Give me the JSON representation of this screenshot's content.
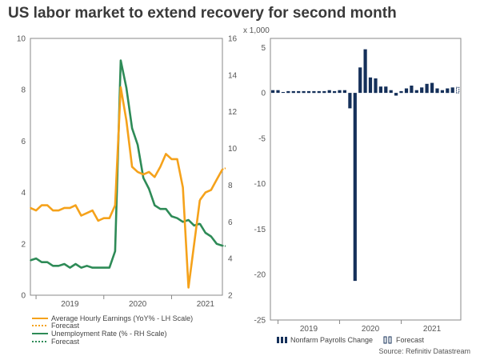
{
  "title": "US labor market to extend recovery for second month",
  "source": "Source: Refinitiv Datastream",
  "colors": {
    "earnings": "#f5a21b",
    "unemployment": "#2e8b57",
    "payrolls": "#15305a",
    "axis": "#888888"
  },
  "chart_data": [
    {
      "type": "line",
      "name": "left",
      "x_tick_labels": [
        "2019",
        "2020",
        "2021"
      ],
      "x_range": [
        "2018-12",
        "2021-07"
      ],
      "left_axis": {
        "label": "",
        "ylim": [
          0,
          10
        ],
        "ticks": [
          0,
          2,
          4,
          6,
          8,
          10
        ]
      },
      "right_axis": {
        "label": "",
        "ylim": [
          2,
          16
        ],
        "ticks": [
          2,
          4,
          6,
          8,
          10,
          12,
          14,
          16
        ]
      },
      "series": [
        {
          "name": "Average Hourly Earnings (YoY% - LH Scale)",
          "axis": "left",
          "x": [
            "2018-12",
            "2019-01",
            "2019-02",
            "2019-03",
            "2019-04",
            "2019-05",
            "2019-06",
            "2019-07",
            "2019-08",
            "2019-09",
            "2019-10",
            "2019-11",
            "2019-12",
            "2020-01",
            "2020-02",
            "2020-03",
            "2020-04",
            "2020-05",
            "2020-06",
            "2020-07",
            "2020-08",
            "2020-09",
            "2020-10",
            "2020-11",
            "2020-12",
            "2021-01",
            "2021-02",
            "2021-03",
            "2021-04",
            "2021-05",
            "2021-06"
          ],
          "values": [
            3.4,
            3.3,
            3.5,
            3.5,
            3.3,
            3.3,
            3.4,
            3.4,
            3.5,
            3.1,
            3.2,
            3.3,
            2.9,
            3.0,
            3.0,
            3.5,
            8.1,
            6.8,
            5.0,
            4.8,
            4.7,
            4.8,
            4.6,
            5.0,
            5.5,
            5.3,
            5.3,
            4.2,
            0.3,
            2.0,
            3.7
          ],
          "forecast": {
            "x": [
              "2021-07",
              "2021-08",
              "2021-09",
              "2021-10"
            ],
            "values": [
              4.0,
              4.1,
              4.5,
              4.9
            ]
          }
        },
        {
          "name": "Unemployment Rate (% - RH Scale)",
          "axis": "right",
          "x": [
            "2018-12",
            "2019-01",
            "2019-02",
            "2019-03",
            "2019-04",
            "2019-05",
            "2019-06",
            "2019-07",
            "2019-08",
            "2019-09",
            "2019-10",
            "2019-11",
            "2019-12",
            "2020-01",
            "2020-02",
            "2020-03",
            "2020-04",
            "2020-05",
            "2020-06",
            "2020-07",
            "2020-08",
            "2020-09",
            "2020-10",
            "2020-11",
            "2020-12",
            "2021-01",
            "2021-02",
            "2021-03",
            "2021-04",
            "2021-05",
            "2021-06"
          ],
          "values": [
            3.9,
            4.0,
            3.8,
            3.8,
            3.6,
            3.6,
            3.7,
            3.5,
            3.7,
            3.5,
            3.6,
            3.5,
            3.5,
            3.5,
            3.5,
            4.4,
            14.8,
            13.3,
            11.1,
            10.2,
            8.4,
            7.8,
            6.9,
            6.7,
            6.7,
            6.3,
            6.2,
            6.0,
            6.1,
            5.8,
            5.9
          ],
          "forecast": {
            "x": [
              "2021-07",
              "2021-08",
              "2021-09",
              "2021-10"
            ],
            "values": [
              5.4,
              5.2,
              4.8,
              4.7
            ]
          }
        }
      ],
      "legend": [
        {
          "label": "Average Hourly Earnings (YoY% - LH Scale)",
          "style": "solid",
          "color_key": "earnings"
        },
        {
          "label": "Forecast",
          "style": "dotted",
          "color_key": "earnings"
        },
        {
          "label": "Unemployment Rate (% - RH Scale)",
          "style": "solid",
          "color_key": "unemployment"
        },
        {
          "label": "Forecast",
          "style": "dotted",
          "color_key": "unemployment"
        }
      ]
    },
    {
      "type": "bar",
      "name": "right",
      "units_label": "x 1,000",
      "x_tick_labels": [
        "2019",
        "2020",
        "2021"
      ],
      "ylim": [
        -25,
        6
      ],
      "ticks": [
        5,
        0,
        -5,
        -10,
        -15,
        -20,
        -25
      ],
      "series": [
        {
          "name": "Nonfarm Payrolls Change",
          "x": [
            "2018-12",
            "2019-01",
            "2019-02",
            "2019-03",
            "2019-04",
            "2019-05",
            "2019-06",
            "2019-07",
            "2019-08",
            "2019-09",
            "2019-10",
            "2019-11",
            "2019-12",
            "2020-01",
            "2020-02",
            "2020-03",
            "2020-04",
            "2020-05",
            "2020-06",
            "2020-07",
            "2020-08",
            "2020-09",
            "2020-10",
            "2020-11",
            "2020-12",
            "2021-01",
            "2021-02",
            "2021-03",
            "2021-04",
            "2021-05",
            "2021-06",
            "2021-07",
            "2021-08",
            "2021-09",
            "2021-10",
            "2021-11"
          ],
          "values": [
            0.3,
            0.3,
            0.1,
            0.2,
            0.2,
            0.2,
            0.2,
            0.2,
            0.2,
            0.2,
            0.2,
            0.3,
            0.2,
            0.3,
            0.3,
            -1.7,
            -20.7,
            2.8,
            4.8,
            1.7,
            1.6,
            0.7,
            0.7,
            0.3,
            -0.3,
            0.2,
            0.5,
            0.8,
            0.3,
            0.6,
            1.0,
            1.1,
            0.5,
            0.3,
            0.5,
            0.6
          ]
        },
        {
          "name": "Forecast",
          "x": [
            "2021-12"
          ],
          "values": [
            0.6
          ]
        }
      ],
      "legend": [
        {
          "label": "Nonfarm Payrolls Change",
          "style": "solid-bars",
          "color_key": "payrolls"
        },
        {
          "label": "Forecast",
          "style": "hollow-bars",
          "color_key": "payrolls"
        }
      ]
    }
  ]
}
